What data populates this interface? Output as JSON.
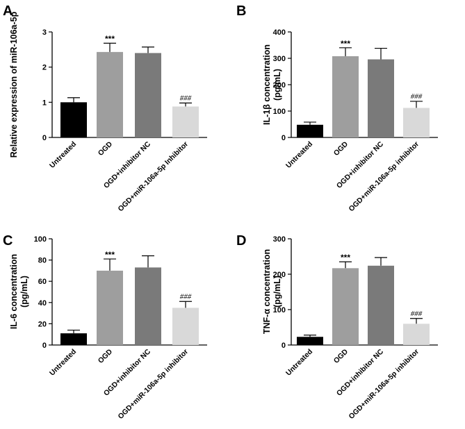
{
  "categories": [
    "Untreated",
    "OGD",
    "OGD+inhibitor NC",
    "OGD+miR-106a-5p inhibitor",
    "OGD+miR-106a-5p Inhibitor"
  ],
  "colors": {
    "untreated": "#000000",
    "ogd": "#9e9e9e",
    "inhibitor_nc": "#7a7a7a",
    "mir_inhibitor": "#d9d9d9"
  },
  "chart_data": [
    {
      "panel": "A",
      "type": "bar",
      "ylabel": "Relative expression of miR-106a-5p",
      "ylim": [
        0,
        3
      ],
      "yticks": [
        0,
        1,
        2,
        3
      ],
      "categories": [
        "Untreated",
        "OGD",
        "OGD+inhibitor NC",
        "OGD+miR-106a-5p Inhibitor"
      ],
      "values": [
        1.0,
        2.43,
        2.4,
        0.88
      ],
      "errors": [
        0.13,
        0.25,
        0.17,
        0.1
      ],
      "annotations": [
        "",
        "***",
        "",
        "###"
      ]
    },
    {
      "panel": "B",
      "type": "bar",
      "ylabel": "IL-1β concentration (pg/mL)",
      "ylim": [
        0,
        400
      ],
      "yticks": [
        0,
        100,
        200,
        300,
        400
      ],
      "categories": [
        "Untreated",
        "OGD",
        "OGD+inhibitor NC",
        "OGD+miR-106a-5p inhibitor"
      ],
      "values": [
        48,
        308,
        296,
        112
      ],
      "errors": [
        10,
        32,
        42,
        25
      ],
      "annotations": [
        "",
        "***",
        "",
        "###"
      ]
    },
    {
      "panel": "C",
      "type": "bar",
      "ylabel": "IL-6 concentration (pg/mL)",
      "ylim": [
        0,
        100
      ],
      "yticks": [
        0,
        20,
        40,
        60,
        80,
        100
      ],
      "categories": [
        "Untreated",
        "OGD",
        "OGD+inhibitor NC",
        "OGD+miR-106a-5p inhibitor"
      ],
      "values": [
        11,
        70,
        73,
        35
      ],
      "errors": [
        3,
        11,
        11,
        6
      ],
      "annotations": [
        "",
        "***",
        "",
        "###"
      ]
    },
    {
      "panel": "D",
      "type": "bar",
      "ylabel": "TNF-α concentration (pg/mL)",
      "ylim": [
        0,
        300
      ],
      "yticks": [
        0,
        100,
        200,
        300
      ],
      "categories": [
        "Untreated",
        "OGD",
        "OGD+inhibitor NC",
        "OGD+miR-106a-5p inhibitor"
      ],
      "values": [
        23,
        217,
        224,
        60
      ],
      "errors": [
        5,
        18,
        23,
        15
      ],
      "annotations": [
        "",
        "***",
        "",
        "###"
      ]
    }
  ]
}
